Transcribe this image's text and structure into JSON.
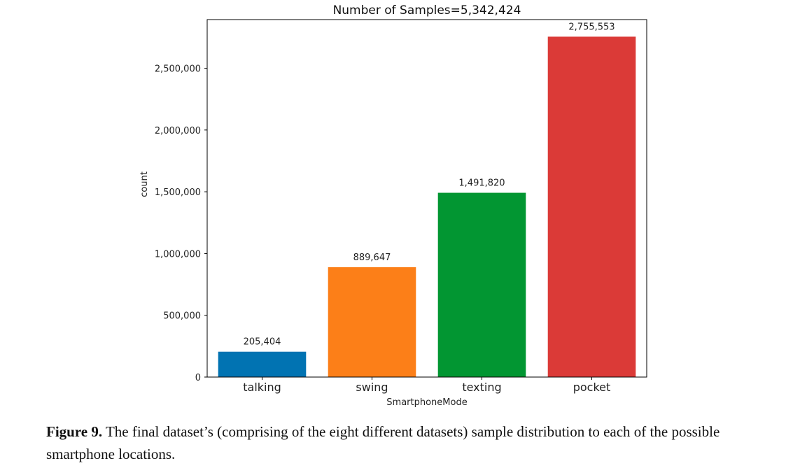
{
  "chart_data": {
    "type": "bar",
    "title": "Number of Samples=5,342,424",
    "xlabel": "SmartphoneMode",
    "ylabel": "count",
    "categories": [
      "talking",
      "swing",
      "texting",
      "pocket"
    ],
    "values": [
      205404,
      889647,
      1491820,
      2755553
    ],
    "value_labels": [
      "205,404",
      "889,647",
      "1,491,820",
      "2,755,553"
    ],
    "colors": [
      "#0173b2",
      "#fc7f18",
      "#029632",
      "#db3a37"
    ],
    "yticks": [
      0,
      500000,
      1000000,
      1500000,
      2000000,
      2500000
    ],
    "ytick_labels": [
      "0",
      "500,000",
      "1,000,000",
      "1,500,000",
      "2,000,000",
      "2,500,000"
    ],
    "ylim": [
      0,
      2893831
    ],
    "grid": false
  },
  "caption": {
    "label": "Figure 9.",
    "text": "The final dataset’s (comprising of the eight different datasets) sample distribution to each of the possible smartphone locations."
  }
}
